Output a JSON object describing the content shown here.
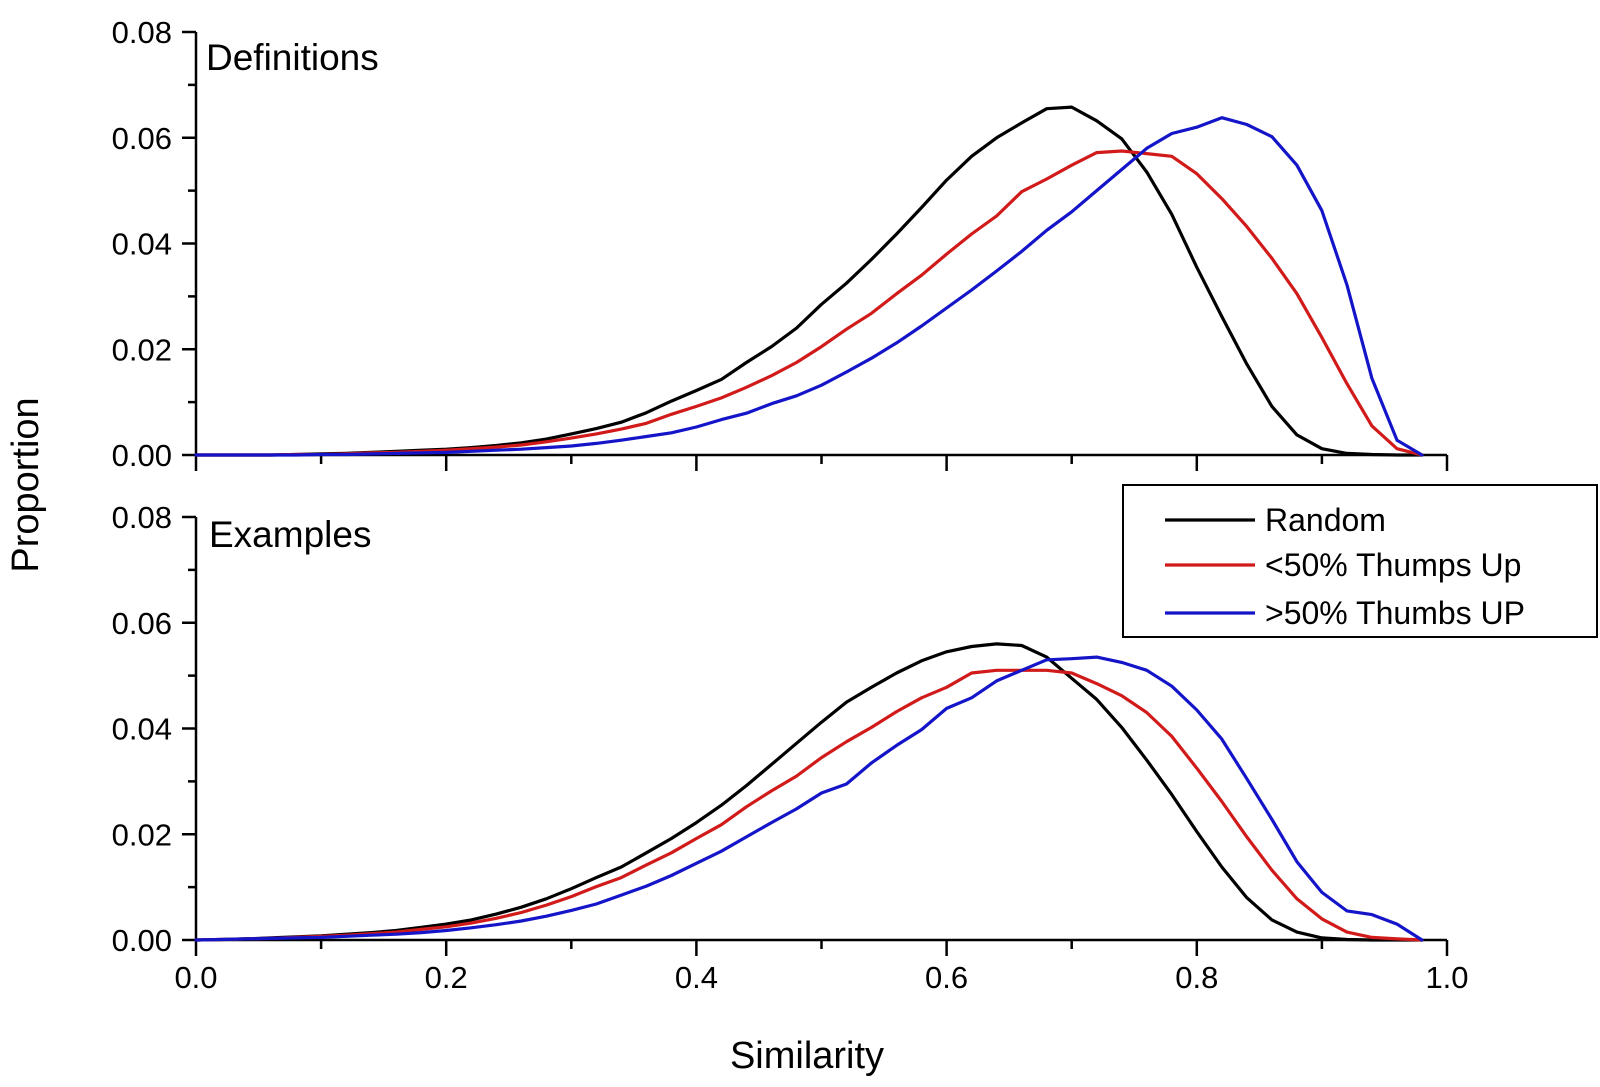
{
  "chart_data": {
    "type": "line",
    "xlabel": "Similarity",
    "ylabel": "Proportion",
    "xlim": [
      0.0,
      1.0
    ],
    "x_ticks": [
      "0.0",
      "0.2",
      "0.4",
      "0.6",
      "0.8",
      "1.0"
    ],
    "y_ticks": [
      "0.00",
      "0.02",
      "0.04",
      "0.06",
      "0.08"
    ],
    "legend": {
      "position": "top-right of lower panel",
      "entries": [
        {
          "name": "Random",
          "color": "#000000"
        },
        {
          "name": "<50% Thumps Up",
          "color": "#d11a1a"
        },
        {
          "name": ">50% Thumbs UP",
          "color": "#1414c8"
        }
      ]
    },
    "x": [
      0,
      0.02,
      0.04,
      0.06,
      0.08,
      0.1,
      0.12,
      0.14,
      0.16,
      0.18,
      0.2,
      0.22,
      0.24,
      0.26,
      0.28,
      0.3,
      0.32,
      0.34,
      0.36,
      0.38,
      0.4,
      0.42,
      0.44,
      0.46,
      0.48,
      0.5,
      0.52,
      0.54,
      0.56,
      0.58,
      0.6,
      0.62,
      0.64,
      0.66,
      0.68,
      0.7,
      0.72,
      0.74,
      0.76,
      0.78,
      0.8,
      0.82,
      0.84,
      0.86,
      0.88,
      0.9,
      0.92,
      0.94,
      0.96,
      0.98
    ],
    "panels": [
      {
        "title": "Definitions",
        "ylim": [
          0.0,
          0.08
        ],
        "series": [
          {
            "name": "Random",
            "color": "#000000",
            "values": [
              0,
              0,
              0,
              0,
              0.0001,
              0.0002,
              0.0003,
              0.0005,
              0.0007,
              0.0009,
              0.0011,
              0.0014,
              0.0018,
              0.0023,
              0.003,
              0.004,
              0.005,
              0.0062,
              0.008,
              0.0102,
              0.0122,
              0.0143,
              0.0175,
              0.0205,
              0.024,
              0.0285,
              0.0325,
              0.037,
              0.0418,
              0.0468,
              0.052,
              0.0565,
              0.06,
              0.0628,
              0.0655,
              0.0658,
              0.0632,
              0.0598,
              0.0535,
              0.0455,
              0.0355,
              0.0262,
              0.0172,
              0.0092,
              0.0038,
              0.0012,
              0.0003,
              0.0001,
              0,
              0
            ]
          },
          {
            "name": "<50% Thumps Up",
            "color": "#d11a1a",
            "values": [
              0,
              0,
              0,
              0,
              0.0001,
              0.0001,
              0.0002,
              0.0004,
              0.0005,
              0.0007,
              0.0009,
              0.0012,
              0.0015,
              0.0019,
              0.0025,
              0.0032,
              0.004,
              0.0049,
              0.006,
              0.0077,
              0.0092,
              0.0108,
              0.0128,
              0.015,
              0.0175,
              0.0205,
              0.0238,
              0.0268,
              0.0305,
              0.034,
              0.038,
              0.0418,
              0.0452,
              0.0498,
              0.0522,
              0.0548,
              0.0572,
              0.0575,
              0.057,
              0.0565,
              0.0532,
              0.0485,
              0.0432,
              0.0372,
              0.0305,
              0.0222,
              0.0135,
              0.0055,
              0.0012,
              0
            ]
          },
          {
            "name": ">50% Thumbs UP",
            "color": "#1414c8",
            "values": [
              0,
              0,
              0,
              0,
              0,
              0.0001,
              0.0001,
              0.0002,
              0.0003,
              0.0004,
              0.0005,
              0.0007,
              0.0009,
              0.0011,
              0.0014,
              0.0017,
              0.0022,
              0.0028,
              0.0035,
              0.0042,
              0.0053,
              0.0067,
              0.0079,
              0.0097,
              0.0112,
              0.0132,
              0.0157,
              0.0183,
              0.0212,
              0.0244,
              0.0278,
              0.0312,
              0.0348,
              0.0385,
              0.0425,
              0.046,
              0.05,
              0.054,
              0.058,
              0.0608,
              0.062,
              0.0638,
              0.0625,
              0.0602,
              0.0548,
              0.0462,
              0.0322,
              0.0145,
              0.0028,
              0
            ]
          }
        ]
      },
      {
        "title": "Examples",
        "ylim": [
          0.0,
          0.08
        ],
        "series": [
          {
            "name": "Random",
            "color": "#000000",
            "values": [
              0,
              0.0001,
              0.0002,
              0.0004,
              0.0006,
              0.0008,
              0.0011,
              0.0014,
              0.0018,
              0.0024,
              0.003,
              0.0038,
              0.0049,
              0.0062,
              0.0078,
              0.0097,
              0.0118,
              0.0138,
              0.0165,
              0.0192,
              0.0222,
              0.0255,
              0.0292,
              0.0332,
              0.0372,
              0.0412,
              0.045,
              0.0478,
              0.0505,
              0.0528,
              0.0545,
              0.0555,
              0.056,
              0.0557,
              0.0535,
              0.0495,
              0.0455,
              0.0402,
              0.034,
              0.0275,
              0.0205,
              0.0138,
              0.008,
              0.0038,
              0.0015,
              0.0004,
              0.0001,
              0,
              0,
              0
            ]
          },
          {
            "name": "<50% Thumps Up",
            "color": "#d11a1a",
            "values": [
              0,
              0.0001,
              0.0002,
              0.0003,
              0.0005,
              0.0007,
              0.0009,
              0.0012,
              0.0015,
              0.002,
              0.0025,
              0.0032,
              0.0041,
              0.0052,
              0.0066,
              0.0082,
              0.0101,
              0.0118,
              0.0142,
              0.0165,
              0.0192,
              0.0218,
              0.0252,
              0.0282,
              0.031,
              0.0345,
              0.0375,
              0.0402,
              0.0432,
              0.0458,
              0.0478,
              0.0505,
              0.051,
              0.051,
              0.051,
              0.0505,
              0.0485,
              0.0462,
              0.043,
              0.0385,
              0.0325,
              0.0262,
              0.0195,
              0.0132,
              0.0078,
              0.004,
              0.0015,
              0.0005,
              0.0002,
              0
            ]
          },
          {
            "name": ">50% Thumbs UP",
            "color": "#1414c8",
            "values": [
              0,
              0.0001,
              0.0002,
              0.0003,
              0.0004,
              0.0005,
              0.0007,
              0.0009,
              0.0011,
              0.0014,
              0.0018,
              0.0023,
              0.0029,
              0.0036,
              0.0045,
              0.0056,
              0.0068,
              0.0085,
              0.0102,
              0.0122,
              0.0145,
              0.0168,
              0.0195,
              0.0222,
              0.0248,
              0.0278,
              0.0295,
              0.0335,
              0.0368,
              0.0398,
              0.0438,
              0.0458,
              0.049,
              0.051,
              0.053,
              0.0532,
              0.0535,
              0.0525,
              0.051,
              0.048,
              0.0435,
              0.038,
              0.0305,
              0.0228,
              0.0148,
              0.009,
              0.0055,
              0.0048,
              0.003,
              0
            ]
          }
        ]
      }
    ]
  }
}
